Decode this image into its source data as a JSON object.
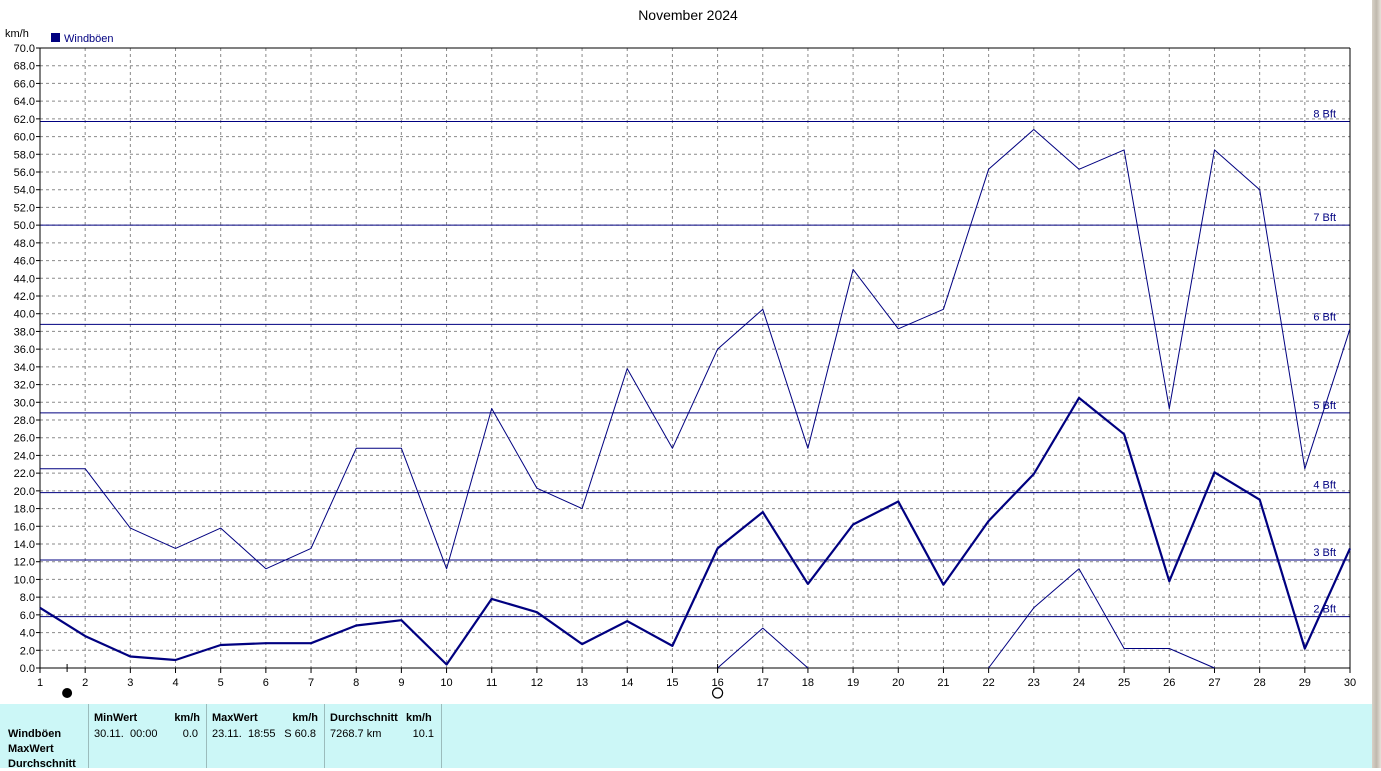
{
  "chart_data": {
    "type": "line",
    "title": "November 2024",
    "ylabel": "km/h",
    "ylim": [
      0,
      70
    ],
    "ytick_step": 2,
    "x": [
      1,
      2,
      3,
      4,
      5,
      6,
      7,
      8,
      9,
      10,
      11,
      12,
      13,
      14,
      15,
      16,
      17,
      18,
      19,
      20,
      21,
      22,
      23,
      24,
      25,
      26,
      27,
      28,
      29,
      30
    ],
    "grid": true,
    "legend": {
      "position": "top-left",
      "entries": [
        {
          "label": "Windböen",
          "color": "#000080"
        }
      ]
    },
    "series": [
      {
        "name": "Windböen",
        "role": "average",
        "color": "#000080",
        "values": [
          6.8,
          3.6,
          1.3,
          0.9,
          2.6,
          2.8,
          2.8,
          4.8,
          5.4,
          0.4,
          7.8,
          6.3,
          2.7,
          5.3,
          2.5,
          13.5,
          17.6,
          9.5,
          16.2,
          18.8,
          9.4,
          16.6,
          21.9,
          30.5,
          26.4,
          9.8,
          22.1,
          19.0,
          2.2,
          13.5
        ]
      },
      {
        "role": "max",
        "color": "#000080",
        "values": [
          22.5,
          22.5,
          15.8,
          13.5,
          15.8,
          11.2,
          13.5,
          24.8,
          24.8,
          11.2,
          29.3,
          20.3,
          18.0,
          33.8,
          24.8,
          36.0,
          40.5,
          24.8,
          45.0,
          38.3,
          40.5,
          56.3,
          60.8,
          56.3,
          58.5,
          29.3,
          58.5,
          54.0,
          22.5,
          38.3
        ]
      },
      {
        "role": "min",
        "color": "#000080",
        "segments": [
          {
            "x": [
              16,
              17,
              18
            ],
            "values": [
              0.0,
              4.5,
              0.0
            ]
          },
          {
            "x": [
              22,
              23,
              24,
              25,
              26,
              27
            ],
            "values": [
              0.0,
              6.8,
              11.2,
              2.2,
              2.2,
              0.0
            ]
          }
        ]
      }
    ],
    "beaufort_lines": [
      {
        "label": "2 Bft",
        "value": 5.8
      },
      {
        "label": "3 Bft",
        "value": 12.2
      },
      {
        "label": "4 Bft",
        "value": 19.8
      },
      {
        "label": "5 Bft",
        "value": 28.8
      },
      {
        "label": "6 Bft",
        "value": 38.8
      },
      {
        "label": "7 Bft",
        "value": 50.0
      },
      {
        "label": "8 Bft",
        "value": 61.7
      }
    ],
    "moon_phases": [
      {
        "x": 1.6,
        "phase": "new-moon"
      },
      {
        "x": 16,
        "phase": "full-moon"
      }
    ]
  },
  "stats": {
    "row_labels": [
      "Windböen",
      "MaxWert",
      "Durchschnitt"
    ],
    "min": {
      "header": "MinWert",
      "unit": "km/h",
      "date": "30.11.",
      "time": "00:00",
      "value": "0.0"
    },
    "max": {
      "header": "MaxWert",
      "unit": "km/h",
      "date": "23.11.",
      "time": "18:55",
      "dir_value": "S 60.8"
    },
    "avg": {
      "header": "Durchschnitt",
      "unit": "km/h",
      "distance": "7268.7 km",
      "value": "10.1"
    }
  }
}
